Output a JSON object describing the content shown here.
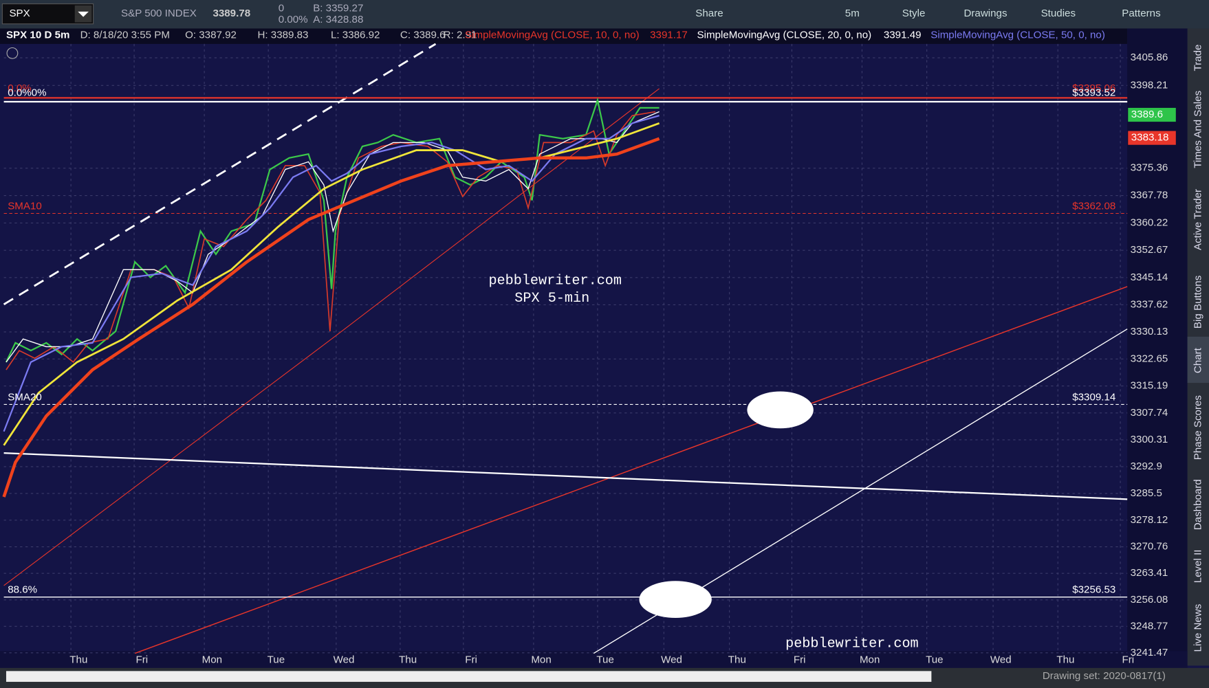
{
  "toolbar": {
    "symbol": "SPX",
    "name": "S&P 500 INDEX",
    "last": "3389.78",
    "change": "0",
    "change_pct": "0.00%",
    "bid": "B: 3359.27",
    "ask": "A: 3428.88",
    "buttons": [
      "Share",
      "5m",
      "Style",
      "Drawings",
      "Studies",
      "Patterns"
    ]
  },
  "header": {
    "symbol": "SPX 10 D 5m",
    "date": "D: 8/18/20 3:55 PM",
    "open": "O: 3387.92",
    "high": "H: 3389.83",
    "low": "L: 3386.92",
    "close": "C: 3389.6",
    "range": "R: 2.91",
    "studies": [
      {
        "label": "SimpleMovingAvg (CLOSE, 10, 0, no)",
        "value": "3391.17"
      },
      {
        "label": "SimpleMovingAvg (CLOSE, 20, 0, no)",
        "value": "3391.49"
      },
      {
        "label": "SimpleMovingAvg (CLOSE, 50, 0, no)"
      }
    ]
  },
  "price_axis": [
    "3405.86",
    "3398.21",
    "3375.36",
    "3367.78",
    "3360.22",
    "3352.67",
    "3345.14",
    "3337.62",
    "3330.13",
    "3322.65",
    "3315.19",
    "3307.74",
    "3300.31",
    "3292.9",
    "3285.5",
    "3278.12",
    "3270.76",
    "3263.41",
    "3256.08",
    "3248.77",
    "3241.47"
  ],
  "price_badges": [
    "3389.6",
    "3383.18"
  ],
  "time_axis": [
    "Thu",
    "Fri",
    "Mon",
    "Tue",
    "Wed",
    "Thu",
    "Fri",
    "Mon",
    "Tue",
    "Wed",
    "Thu",
    "Fri",
    "Mon",
    "Tue",
    "Wed",
    "Thu",
    "Fri"
  ],
  "annotations": {
    "left": [
      "0.0%",
      "0.0%0%",
      "SMA10",
      "SMA20",
      "88.6%"
    ],
    "right": [
      "$3395.06",
      "$3393.52",
      "$3362.08",
      "$3309.14",
      "$3256.53"
    ]
  },
  "watermark": [
    "pebblewriter.com",
    "SPX 5-min",
    "pebblewriter.com"
  ],
  "side_tabs": [
    "Trade",
    "Times And Sales",
    "Active Trader",
    "Big Buttons",
    "Chart",
    "Phase Scores",
    "Dashboard",
    "Level II",
    "Live News"
  ],
  "footer": {
    "drawing_set": "Drawing set: 2020-0817(1)"
  }
}
